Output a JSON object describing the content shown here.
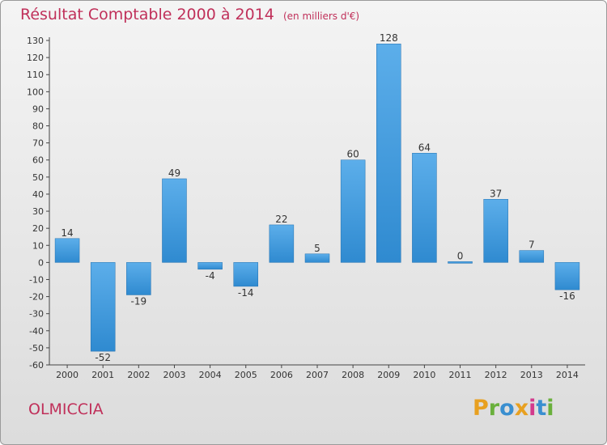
{
  "title": "Résultat Comptable 2000 à 2014",
  "subtitle": "(en milliers d'€)",
  "commune": "OLMICCIA",
  "logo_letters": [
    "P",
    "r",
    "o",
    "x",
    "i",
    "t",
    "i"
  ],
  "logo_colors": [
    "#e8a020",
    "#6ab03c",
    "#3a8fd0",
    "#e8a020",
    "#d23a8c",
    "#3a8fd0",
    "#6ab03c"
  ],
  "colors": {
    "bar": "#2f8ad0",
    "bar_light": "#5caeea",
    "title": "#c0305a"
  },
  "chart_data": {
    "type": "bar",
    "title": "Résultat Comptable 2000 à 2014",
    "categories": [
      "2000",
      "2001",
      "2002",
      "2003",
      "2004",
      "2005",
      "2006",
      "2007",
      "2008",
      "2009",
      "2010",
      "2011",
      "2012",
      "2013",
      "2014"
    ],
    "values": [
      14,
      -52,
      -19,
      49,
      -4,
      -14,
      22,
      5,
      60,
      128,
      64,
      0,
      37,
      7,
      -16
    ],
    "ylim": [
      -60,
      130
    ],
    "yticks": [
      130,
      120,
      110,
      100,
      90,
      80,
      70,
      60,
      50,
      40,
      30,
      20,
      10,
      0,
      -10,
      -20,
      -30,
      -40,
      -50,
      -60
    ],
    "grid": false
  }
}
